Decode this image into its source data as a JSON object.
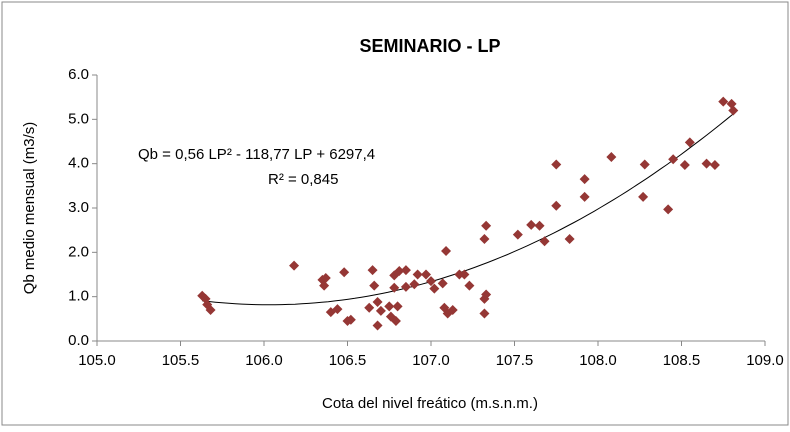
{
  "chart_data": {
    "type": "scatter",
    "title": "SEMINARIO - LP",
    "x_label": "Cota del nivel freático (m.s.n.m.)",
    "y_label": "Qb medio mensual  (m3/s)",
    "annotations": [
      "Qb = 0,56 LP² - 118,77 LP + 6297,4",
      "R² = 0,845"
    ],
    "color": "#953735",
    "trendline": "polynomial",
    "xlim": [
      105,
      109
    ],
    "xticks": [
      {
        "value": 105,
        "label": "105.0"
      },
      {
        "value": 105.5,
        "label": "105.5"
      },
      {
        "value": 106,
        "label": "106.0"
      },
      {
        "value": 106.5,
        "label": "106.5"
      },
      {
        "value": 107,
        "label": "107.0"
      },
      {
        "value": 107.5,
        "label": "107.5"
      },
      {
        "value": 108,
        "label": "108.0"
      },
      {
        "value": 108.5,
        "label": "108.5"
      },
      {
        "value": 109,
        "label": "109.0"
      }
    ],
    "ylim": [
      0,
      6
    ],
    "yticks": [
      {
        "value": 0,
        "label": "0.0"
      },
      {
        "value": 1,
        "label": "1.0"
      },
      {
        "value": 2,
        "label": "2.0"
      },
      {
        "value": 3,
        "label": "3.0"
      },
      {
        "value": 4,
        "label": "4.0"
      },
      {
        "value": 5,
        "label": "5.0"
      },
      {
        "value": 6,
        "label": "6.0"
      }
    ],
    "x": [
      105.63,
      105.65,
      105.66,
      105.68,
      106.18,
      106.35,
      106.36,
      106.37,
      106.4,
      106.44,
      106.48,
      106.5,
      106.52,
      106.63,
      106.65,
      106.66,
      106.68,
      106.68,
      106.7,
      106.75,
      106.76,
      106.78,
      106.78,
      106.79,
      106.8,
      106.81,
      106.85,
      106.85,
      106.9,
      106.92,
      106.97,
      107.0,
      107.02,
      107.07,
      107.08,
      107.09,
      107.1,
      107.13,
      107.17,
      107.2,
      107.23,
      107.32,
      107.32,
      107.33,
      107.32,
      107.33,
      107.52,
      107.6,
      107.65,
      107.68,
      107.75,
      107.75,
      107.83,
      107.92,
      107.92,
      108.08,
      108.27,
      108.28,
      108.42,
      108.45,
      108.52,
      108.55,
      108.65,
      108.7,
      108.75,
      108.8,
      108.81
    ],
    "values": [
      1.02,
      0.95,
      0.82,
      0.7,
      1.7,
      1.38,
      1.25,
      1.42,
      0.65,
      0.72,
      1.55,
      0.45,
      0.48,
      0.75,
      1.6,
      1.25,
      0.88,
      0.35,
      0.68,
      0.78,
      0.55,
      1.48,
      1.2,
      0.45,
      0.78,
      1.58,
      1.6,
      1.22,
      1.28,
      1.5,
      1.5,
      1.35,
      1.18,
      1.3,
      0.75,
      2.03,
      0.62,
      0.7,
      1.5,
      1.5,
      1.25,
      0.62,
      0.95,
      1.05,
      2.3,
      2.6,
      2.4,
      2.62,
      2.6,
      2.25,
      3.05,
      3.98,
      2.3,
      3.25,
      3.65,
      4.15,
      3.25,
      3.98,
      2.97,
      4.1,
      3.97,
      4.48,
      4.0,
      3.97,
      5.4,
      5.35,
      5.2
    ]
  }
}
